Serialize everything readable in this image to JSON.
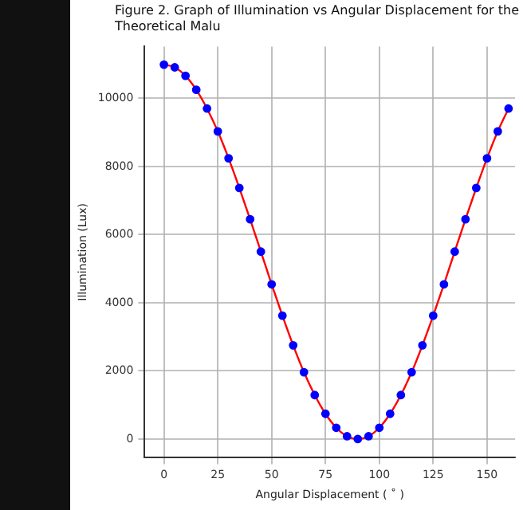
{
  "chart_data": {
    "type": "line",
    "title": "Figure 2. Graph of Illumination vs Angular Displacement for the Theoretical Malu",
    "xlabel": "Angular Displacement ( ˚ )",
    "ylabel": "Illumination (Lux)",
    "x": [
      0,
      5,
      10,
      15,
      20,
      25,
      30,
      35,
      40,
      45,
      50,
      55,
      60,
      65,
      70,
      75,
      80,
      85,
      90,
      95,
      100,
      105,
      110,
      115,
      120,
      125,
      130,
      135,
      140,
      145,
      150,
      155,
      160
    ],
    "series": [
      {
        "color": "#ff0000",
        "marker": "none",
        "values": [
          10990,
          10910,
          10660,
          10250,
          9700,
          9030,
          8240,
          7370,
          6450,
          5500,
          4540,
          3620,
          2750,
          1960,
          1290,
          740,
          330,
          80,
          0,
          80,
          330,
          740,
          1290,
          1960,
          2750,
          3620,
          4540,
          5500,
          6450,
          7370,
          8240,
          9030,
          9700
        ]
      },
      {
        "type": "scatter",
        "color": "#0000ff",
        "marker": "circle",
        "values": [
          10990,
          10910,
          10660,
          10250,
          9700,
          9030,
          8240,
          7370,
          6450,
          5500,
          4540,
          3620,
          2750,
          1960,
          1290,
          740,
          330,
          80,
          0,
          80,
          330,
          740,
          1290,
          1960,
          2750,
          3620,
          4540,
          5500,
          6450,
          7370,
          8240,
          9030,
          9700
        ]
      }
    ],
    "xlim": [
      -9,
      163
    ],
    "xticks": [
      0,
      25,
      50,
      75,
      100,
      125,
      150
    ],
    "ylim": [
      -550,
      11520
    ],
    "yticks": [
      0,
      2000,
      4000,
      6000,
      8000,
      10000
    ],
    "grid": true,
    "legend": false
  }
}
